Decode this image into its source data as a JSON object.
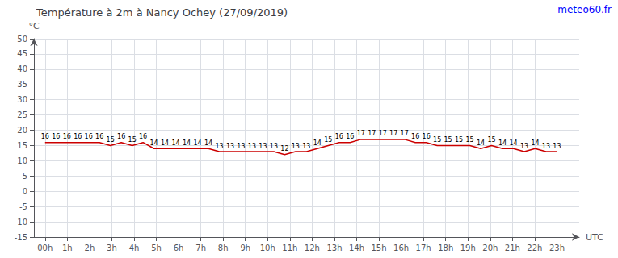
{
  "chart_data": {
    "type": "line",
    "title": "Température à 2m à Nancy Ochey (27/09/2019)",
    "ylabel": "°C",
    "xlabel": "UTC",
    "annotations": [
      {
        "text": "meteo60.fr",
        "color": "blue"
      }
    ],
    "color": "#cc0000",
    "grid": true,
    "data_labels": true,
    "x": [
      0,
      0.489362,
      0.978723,
      1.468085,
      1.957447,
      2.446809,
      2.93617,
      3.425532,
      3.914894,
      4.404255,
      4.893617,
      5.382979,
      5.87234,
      6.361702,
      6.851064,
      7.340426,
      7.829787,
      8.319149,
      8.808511,
      9.297872,
      9.787234,
      10.276596,
      10.765957,
      11.255319,
      11.744681,
      12.234043,
      12.723404,
      13.212766,
      13.702128,
      14.191489,
      14.680851,
      15.170213,
      15.659574,
      16.148936,
      16.638298,
      17.12766,
      17.617021,
      18.106383,
      18.595745,
      19.085106,
      19.574468,
      20.06383,
      20.553191,
      21.042553,
      21.531915,
      22.021277,
      22.510638,
      23
    ],
    "values": [
      16,
      16,
      16,
      16,
      16,
      16,
      15,
      16,
      15,
      16,
      14,
      14,
      14,
      14,
      14,
      14,
      13,
      13,
      13,
      13,
      13,
      13,
      12,
      13,
      13,
      14,
      15,
      16,
      16,
      17,
      17,
      17,
      17,
      17,
      16,
      16,
      15,
      15,
      15,
      15,
      14,
      15,
      14,
      14,
      13,
      14,
      13,
      13
    ],
    "xlim": [
      -0.5,
      24
    ],
    "xticks": [
      {
        "value": 0,
        "label": "00h"
      },
      {
        "value": 1,
        "label": "1h"
      },
      {
        "value": 2,
        "label": "2h"
      },
      {
        "value": 3,
        "label": "3h"
      },
      {
        "value": 4,
        "label": "4h"
      },
      {
        "value": 5,
        "label": "5h"
      },
      {
        "value": 6,
        "label": "6h"
      },
      {
        "value": 7,
        "label": "7h"
      },
      {
        "value": 8,
        "label": "8h"
      },
      {
        "value": 9,
        "label": "9h"
      },
      {
        "value": 10,
        "label": "10h"
      },
      {
        "value": 11,
        "label": "11h"
      },
      {
        "value": 12,
        "label": "12h"
      },
      {
        "value": 13,
        "label": "13h"
      },
      {
        "value": 14,
        "label": "14h"
      },
      {
        "value": 15,
        "label": "15h"
      },
      {
        "value": 16,
        "label": "16h"
      },
      {
        "value": 17,
        "label": "17h"
      },
      {
        "value": 18,
        "label": "18h"
      },
      {
        "value": 19,
        "label": "19h"
      },
      {
        "value": 20,
        "label": "20h"
      },
      {
        "value": 21,
        "label": "21h"
      },
      {
        "value": 22,
        "label": "22h"
      },
      {
        "value": 23,
        "label": "23h"
      }
    ],
    "ylim": [
      -15,
      50
    ],
    "yticks": [
      -15,
      -10,
      -5,
      0,
      5,
      10,
      15,
      20,
      25,
      30,
      35,
      40,
      45,
      50
    ]
  }
}
